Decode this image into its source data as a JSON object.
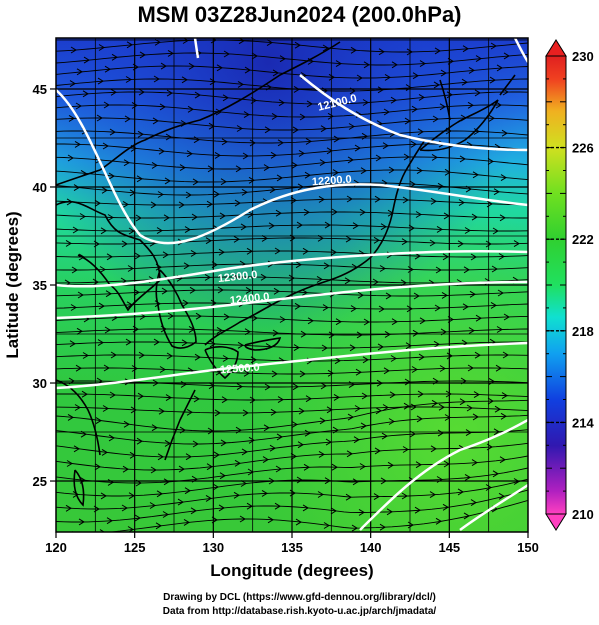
{
  "title": "MSM 03Z28Jun2024 (200.0hPa)",
  "x_axis": {
    "label": "Longitude (degrees)",
    "range": [
      120,
      150
    ],
    "ticks": [
      "120",
      "125",
      "130",
      "135",
      "140",
      "145",
      "150"
    ]
  },
  "y_axis": {
    "label": "Latitude  (degrees)",
    "range": [
      22.4,
      47.6
    ],
    "ticks": [
      "25",
      "30",
      "35",
      "40",
      "45"
    ]
  },
  "colorbar": {
    "range": [
      210,
      230
    ],
    "tick_labels": [
      "230",
      "226",
      "222",
      "218",
      "214",
      "210"
    ],
    "colors": {
      "210": "#ff40c0",
      "211": "#b020c0",
      "213": "#3018b0",
      "215": "#1040e0",
      "217": "#10a0f0",
      "218.5": "#10e0d0",
      "220": "#20e060",
      "222": "#30d030",
      "224": "#70e020",
      "226": "#d0e020",
      "227.5": "#f0b020",
      "229": "#f04020",
      "230": "#e02020"
    }
  },
  "contour_labels": [
    "12100.0",
    "12200.0",
    "12300.0",
    "12400.0",
    "12500.0"
  ],
  "credits": {
    "line1": "Drawing by DCL (https://www.gfd-dennou.org/library/dcl/)",
    "line2": "Data from http://database.rish.kyoto-u.ac.jp/arch/jmadata/"
  },
  "colors": {
    "ocean_north": "#2040d0",
    "ocean_mid": "#20d080",
    "ocean_south": "#30c040",
    "contour": "#ffffff",
    "coast": "#000000"
  }
}
